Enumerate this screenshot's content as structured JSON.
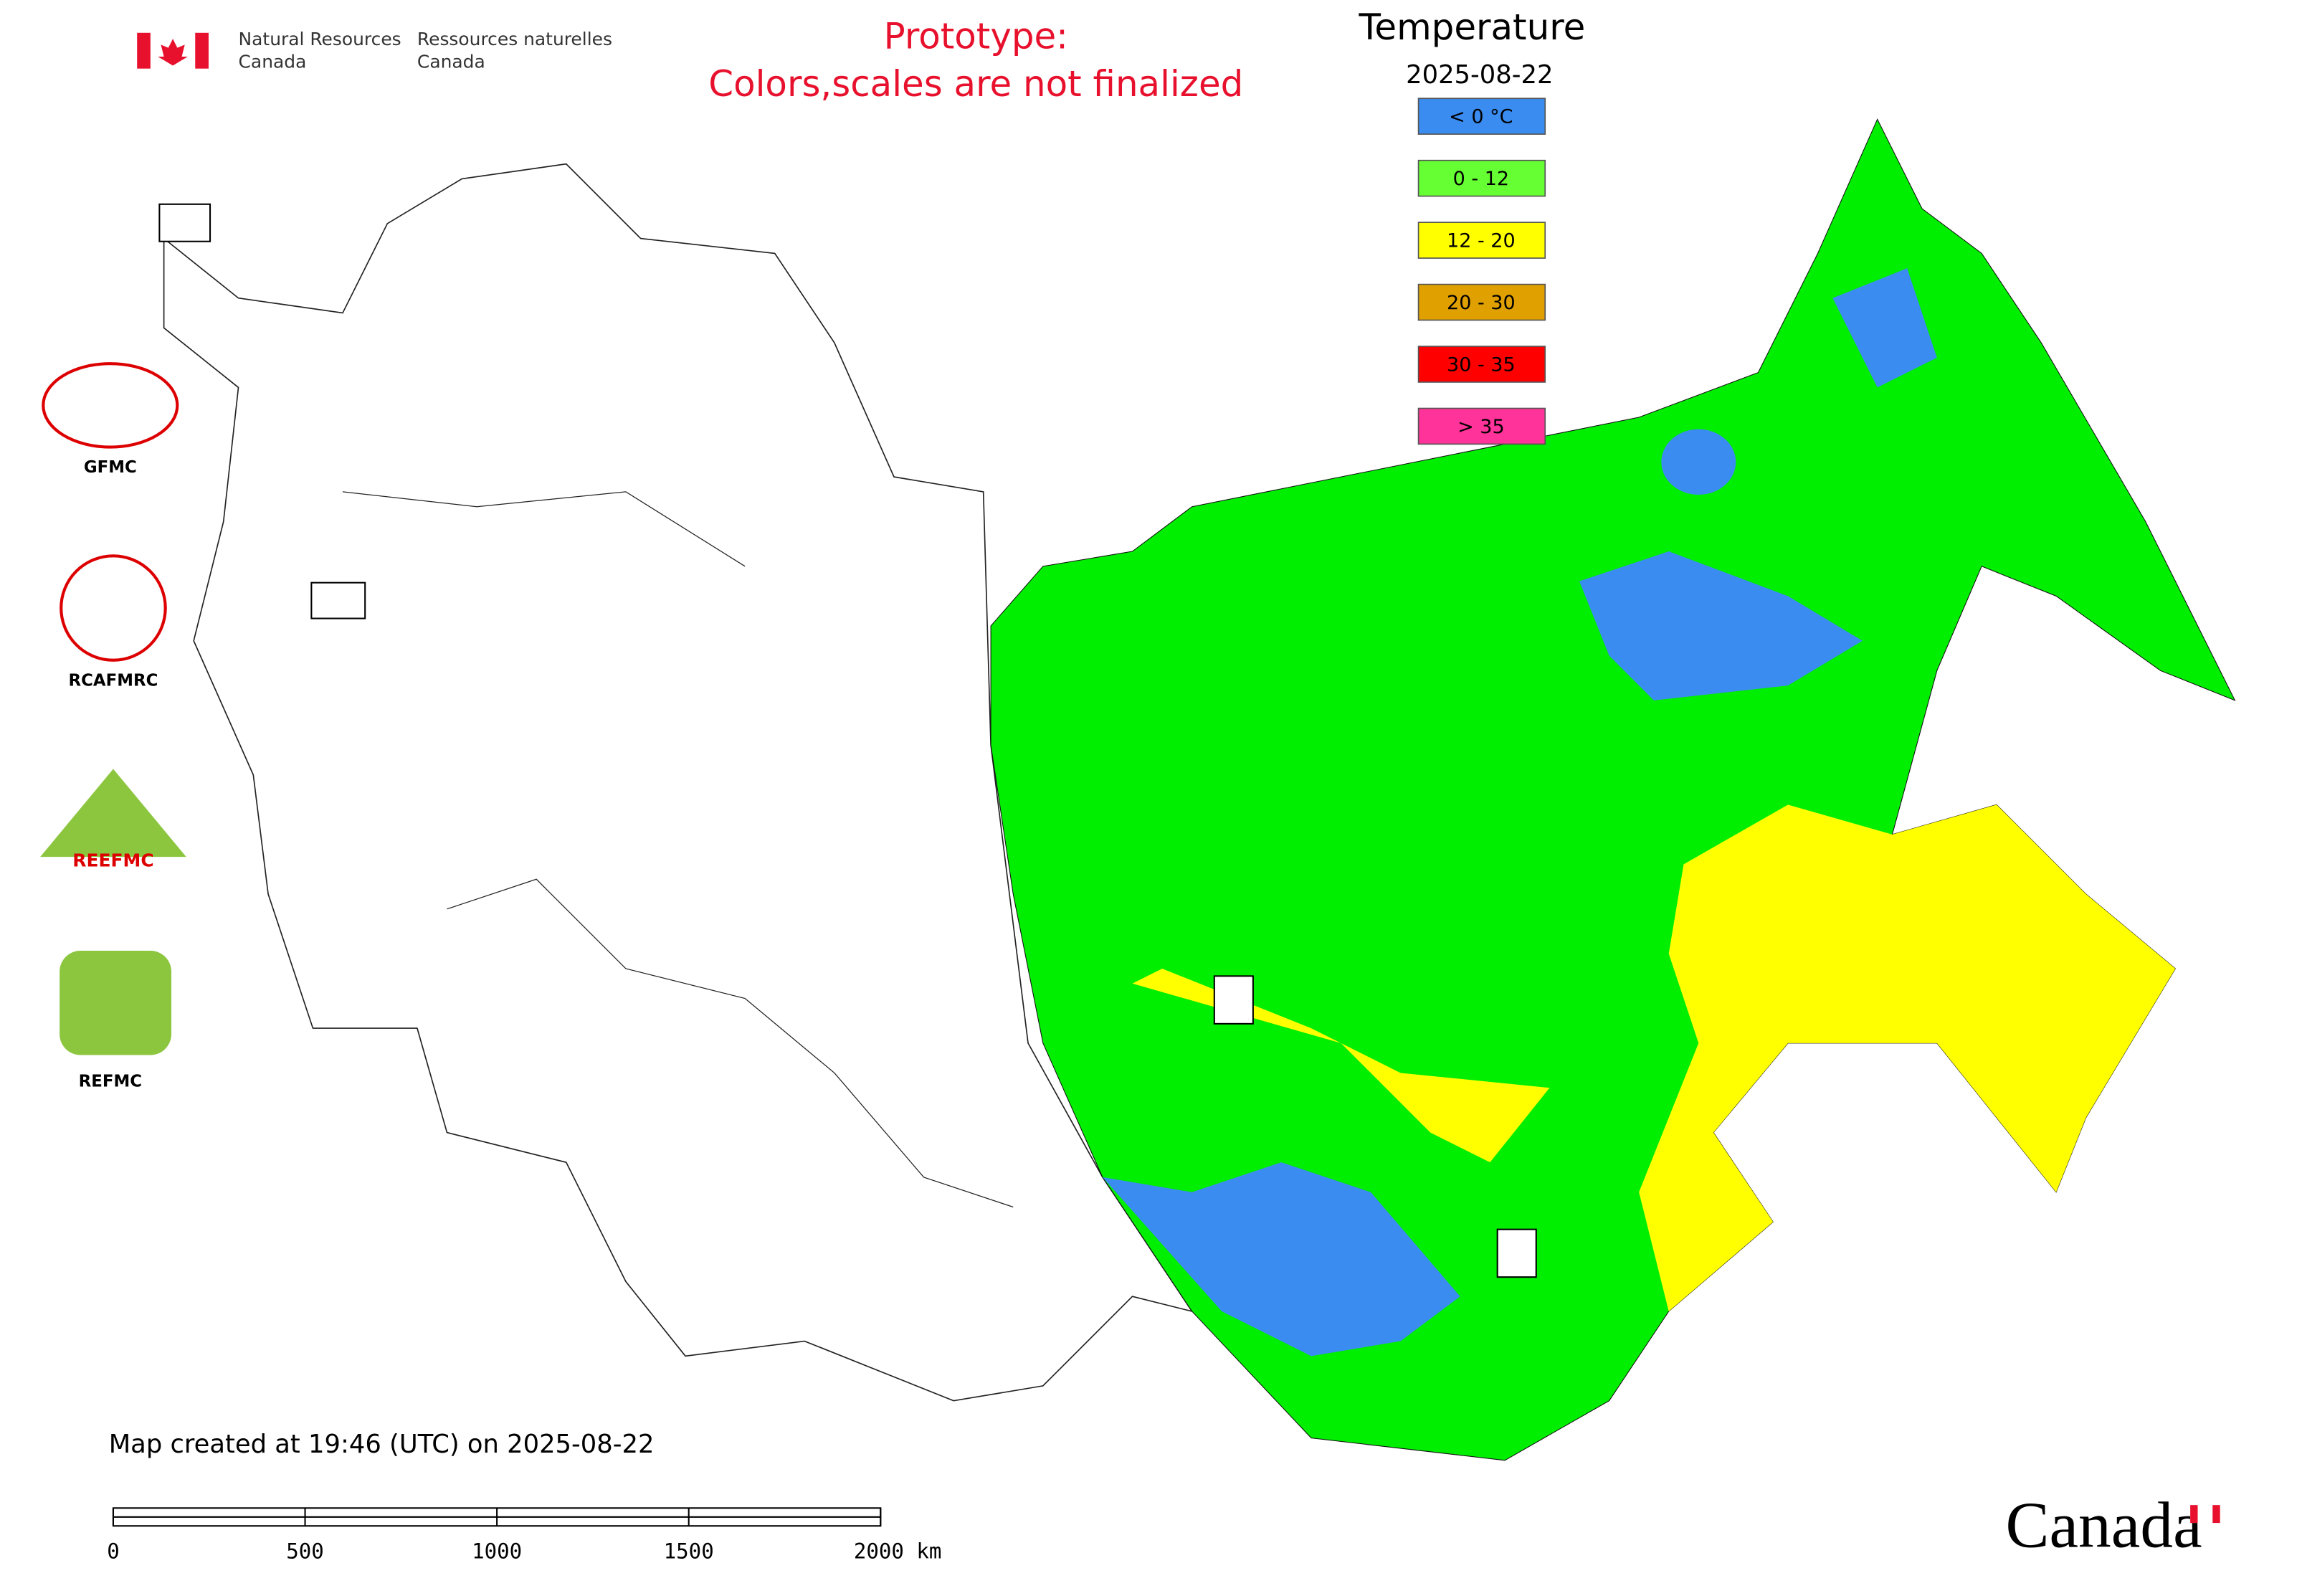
{
  "header": {
    "agency_en": [
      "Natural Resources",
      "Canada"
    ],
    "agency_fr": [
      "Ressources naturelles",
      "Canada"
    ],
    "notice": [
      "Prototype:",
      "Colors,scales are not finalized"
    ]
  },
  "legend": {
    "title": "Temperature",
    "date": "2025-08-22",
    "items": [
      {
        "label": "< 0 °C",
        "color": "#3a8cf0"
      },
      {
        "label": "0 - 12",
        "color": "#66ff33"
      },
      {
        "label": "12 - 20",
        "color": "#ffff00"
      },
      {
        "label": "20 - 30",
        "color": "#e0a000"
      },
      {
        "label": "30 - 35",
        "color": "#ff0000"
      },
      {
        "label": "> 35",
        "color": "#ff3399"
      }
    ]
  },
  "logos": [
    "GFMC",
    "RCAFMRC",
    "REEFMC",
    "REFMC"
  ],
  "footer": {
    "created": "Map created at 19:46 (UTC) on 2025-08-22",
    "scale_labels": [
      "0",
      "500",
      "1000",
      "1500",
      "2000 km"
    ],
    "wordmark": "Canada"
  }
}
